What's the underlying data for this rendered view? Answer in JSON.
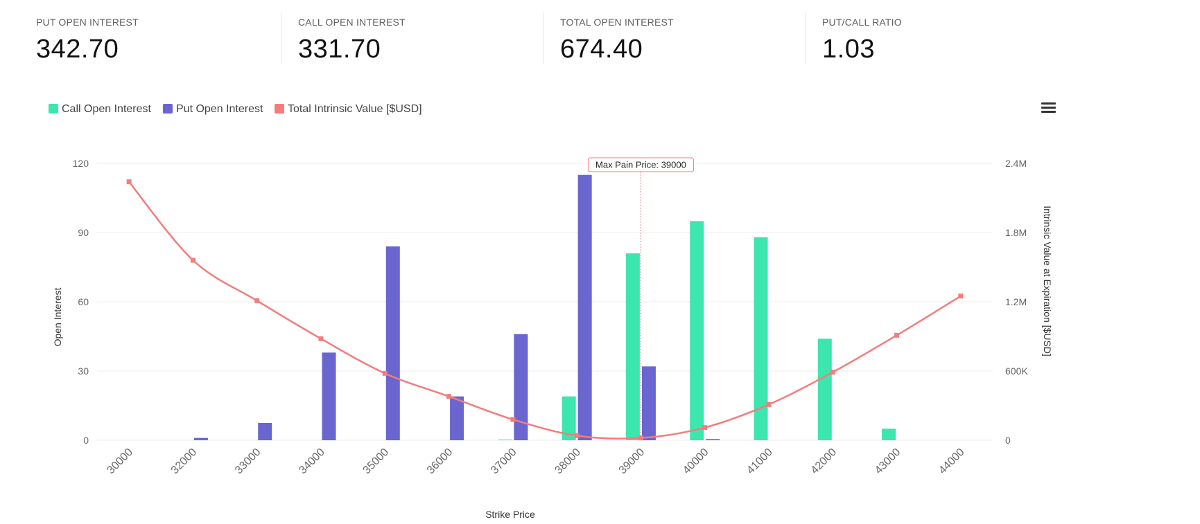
{
  "stats": [
    {
      "label": "PUT OPEN INTEREST",
      "value": "342.70"
    },
    {
      "label": "CALL OPEN INTEREST",
      "value": "331.70"
    },
    {
      "label": "TOTAL OPEN INTEREST",
      "value": "674.40"
    },
    {
      "label": "PUT/CALL RATIO",
      "value": "1.03"
    }
  ],
  "legend": [
    {
      "label": "Call Open Interest",
      "color": "#3ce6af"
    },
    {
      "label": "Put Open Interest",
      "color": "#6a65cf"
    },
    {
      "label": "Total Intrinsic Value [$USD]",
      "color": "#f47c7c"
    }
  ],
  "menu": {
    "icon": "hamburger-menu-icon"
  },
  "chart_data": {
    "type": "bar",
    "categories": [
      "30000",
      "32000",
      "33000",
      "34000",
      "35000",
      "36000",
      "37000",
      "38000",
      "39000",
      "40000",
      "41000",
      "42000",
      "43000",
      "44000"
    ],
    "series": [
      {
        "name": "Call Open Interest",
        "type": "bar",
        "axis": "left",
        "color": "#3ce6af",
        "values": [
          0,
          0,
          0,
          0,
          0,
          0,
          0.3,
          19,
          81,
          95,
          88,
          44,
          5,
          0
        ]
      },
      {
        "name": "Put Open Interest",
        "type": "bar",
        "axis": "left",
        "color": "#6a65cf",
        "values": [
          0,
          1,
          7.5,
          38,
          84,
          19,
          46,
          115,
          32,
          0.5,
          0,
          0,
          0,
          0
        ]
      },
      {
        "name": "Total Intrinsic Value [$USD]",
        "type": "line",
        "axis": "right",
        "color": "#f47c7c",
        "values": [
          2240000,
          1560000,
          1210000,
          880000,
          580000,
          380000,
          180000,
          40000,
          20000,
          110000,
          310000,
          590000,
          910000,
          1250000
        ]
      }
    ],
    "xlabel": "Strike Price",
    "ylabel": "Open Interest",
    "y2label": "Intrinsic Value at Expiration [$USD]",
    "ylim": [
      0,
      120
    ],
    "y2lim": [
      0,
      2400000
    ],
    "yticks": [
      "0",
      "30",
      "60",
      "90",
      "120"
    ],
    "y2ticks": [
      "0",
      "600K",
      "1.2M",
      "1.8M",
      "2.4M"
    ],
    "annotation": {
      "text": "Max Pain Price: 39000",
      "category": "39000"
    },
    "grid": true,
    "legend_position": "top-left"
  }
}
